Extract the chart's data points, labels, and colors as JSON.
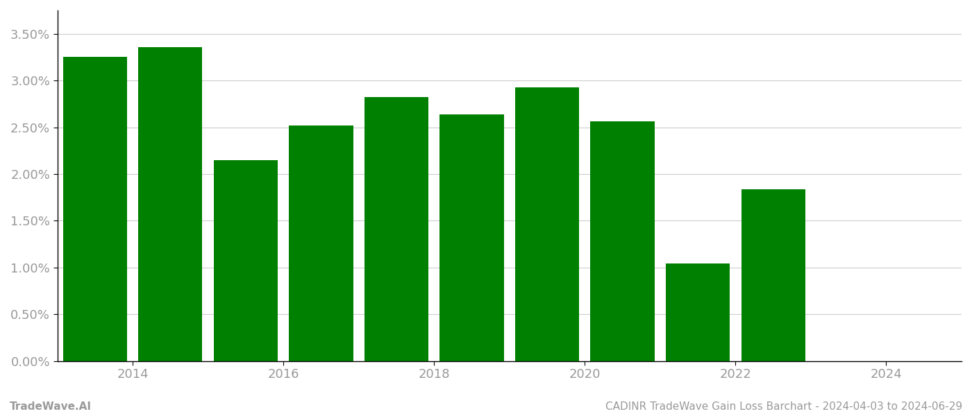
{
  "bar_positions": [
    2013.5,
    2014.5,
    2015.5,
    2016.5,
    2017.5,
    2018.5,
    2019.5,
    2020.5,
    2021.5,
    2022.5
  ],
  "values": [
    0.0325,
    0.0336,
    0.0215,
    0.0252,
    0.0282,
    0.0264,
    0.0293,
    0.0256,
    0.0104,
    0.0184
  ],
  "bar_color": "#008000",
  "bar_width": 0.85,
  "xlim": [
    2013.0,
    2025.0
  ],
  "ylim": [
    0.0,
    0.0375
  ],
  "yticks": [
    0.0,
    0.005,
    0.01,
    0.015,
    0.02,
    0.025,
    0.03,
    0.035
  ],
  "xticks": [
    2014,
    2016,
    2018,
    2020,
    2022,
    2024
  ],
  "background_color": "#ffffff",
  "grid_color": "#cccccc",
  "text_color": "#999999",
  "spine_color": "#000000",
  "footer_left": "TradeWave.AI",
  "footer_right": "CADINR TradeWave Gain Loss Barchart - 2024-04-03 to 2024-06-29",
  "footer_fontsize": 11,
  "tick_fontsize": 13
}
